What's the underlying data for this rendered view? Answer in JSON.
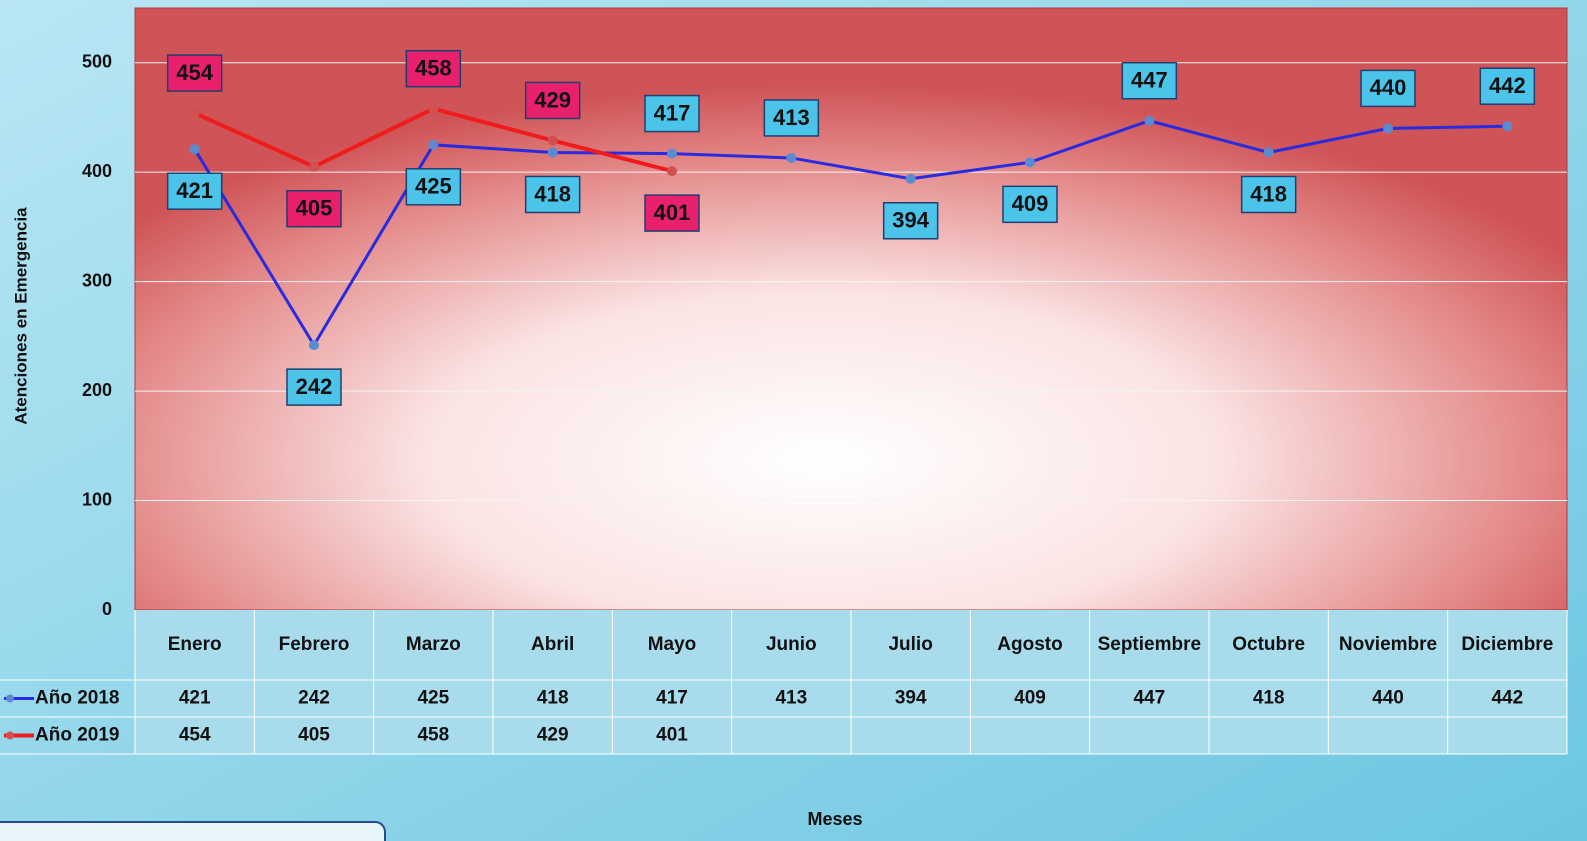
{
  "chart_data": {
    "type": "line",
    "y_axis_label": "Atenciones en Emergencia",
    "x_axis_label": "Meses",
    "categories": [
      "Enero",
      "Febrero",
      "Marzo",
      "Abril",
      "Mayo",
      "Junio",
      "Julio",
      "Agosto",
      "Septiembre",
      "Octubre",
      "Noviembre",
      "Diciembre"
    ],
    "series": [
      {
        "name": "Año 2018",
        "color": "#2a2ae0",
        "label_color": "#4cc4ea",
        "values": [
          421,
          242,
          425,
          418,
          417,
          413,
          394,
          409,
          447,
          418,
          440,
          442
        ]
      },
      {
        "name": "Año 2019",
        "color": "#ee1c1c",
        "label_color": "#e8206e",
        "values": [
          454,
          405,
          458,
          429,
          401,
          null,
          null,
          null,
          null,
          null,
          null,
          null
        ]
      }
    ],
    "ylim": [
      0,
      550
    ],
    "yticks": [
      0,
      100,
      200,
      300,
      400,
      500
    ],
    "grid": true,
    "data_table": true
  }
}
